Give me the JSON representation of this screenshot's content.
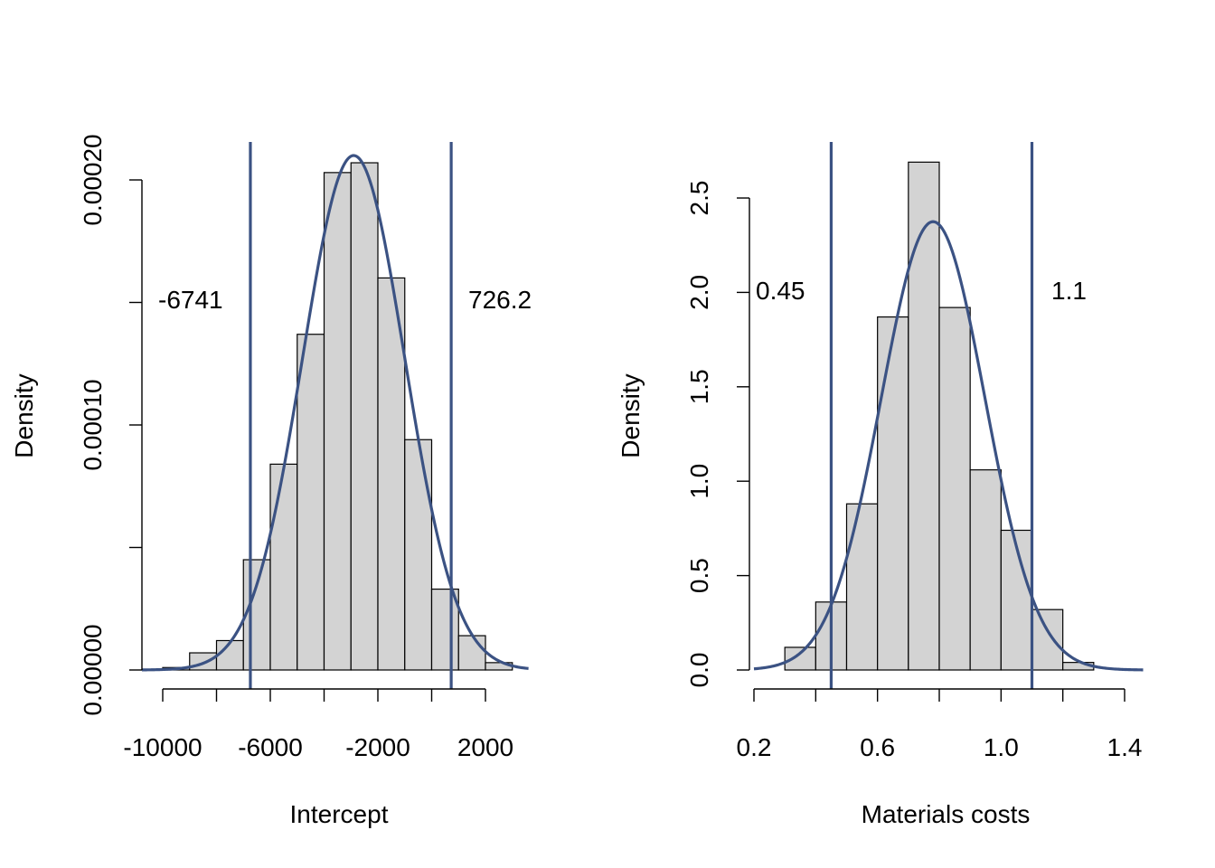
{
  "colors": {
    "bar_fill": "#d3d3d3",
    "bar_stroke": "#000000",
    "line": "#3b5283"
  },
  "chart_data": [
    {
      "type": "bar",
      "subtype": "histogram-with-density",
      "xlabel": "Intercept",
      "ylabel": "Density",
      "xlim": [
        -11000,
        3600
      ],
      "ylim": [
        0,
        0.0002
      ],
      "x_ticks": [
        -10000,
        -8000,
        -6000,
        -4000,
        -2000,
        0,
        2000
      ],
      "x_tick_labels": [
        "-10000",
        "",
        "-6000",
        "",
        "-2000",
        "",
        "2000"
      ],
      "y_ticks": [
        0,
        5e-05,
        0.0001,
        0.00015,
        0.0002
      ],
      "y_tick_labels": [
        "0.00000",
        "",
        "0.00010",
        "",
        "0.00020"
      ],
      "bins": [
        {
          "x0": -10000,
          "x1": -9000,
          "density": 1e-06
        },
        {
          "x0": -9000,
          "x1": -8000,
          "density": 7e-06
        },
        {
          "x0": -8000,
          "x1": -7000,
          "density": 1.2e-05
        },
        {
          "x0": -7000,
          "x1": -6000,
          "density": 4.5e-05
        },
        {
          "x0": -6000,
          "x1": -5000,
          "density": 8.4e-05
        },
        {
          "x0": -5000,
          "x1": -4000,
          "density": 0.000137
        },
        {
          "x0": -4000,
          "x1": -3000,
          "density": 0.000203
        },
        {
          "x0": -3000,
          "x1": -2000,
          "density": 0.000207
        },
        {
          "x0": -2000,
          "x1": -1000,
          "density": 0.00016
        },
        {
          "x0": -1000,
          "x1": 0,
          "density": 9.4e-05
        },
        {
          "x0": 0,
          "x1": 1000,
          "density": 3.3e-05
        },
        {
          "x0": 1000,
          "x1": 2000,
          "density": 1.4e-05
        },
        {
          "x0": 2000,
          "x1": 3000,
          "density": 3e-06
        }
      ],
      "density_curve": {
        "mean": -2900,
        "sd": 1900
      },
      "interval_lines": [
        -6741,
        726.2
      ],
      "interval_labels": [
        "-6741",
        "726.2"
      ]
    },
    {
      "type": "bar",
      "subtype": "histogram-with-density",
      "xlabel": "Materials costs",
      "ylabel": "Density",
      "xlim": [
        0.2,
        1.46
      ],
      "ylim": [
        0,
        2.5
      ],
      "x_ticks": [
        0.2,
        0.4,
        0.6,
        0.8,
        1.0,
        1.2,
        1.4
      ],
      "x_tick_labels": [
        "0.2",
        "",
        "0.6",
        "",
        "1.0",
        "",
        "1.4"
      ],
      "y_ticks": [
        0,
        0.5,
        1.0,
        1.5,
        2.0,
        2.5
      ],
      "y_tick_labels": [
        "0.0",
        "0.5",
        "1.0",
        "1.5",
        "2.0",
        "2.5"
      ],
      "bins": [
        {
          "x0": 0.3,
          "x1": 0.4,
          "density": 0.12
        },
        {
          "x0": 0.4,
          "x1": 0.5,
          "density": 0.36
        },
        {
          "x0": 0.5,
          "x1": 0.6,
          "density": 0.88
        },
        {
          "x0": 0.6,
          "x1": 0.7,
          "density": 1.87
        },
        {
          "x0": 0.7,
          "x1": 0.8,
          "density": 2.69
        },
        {
          "x0": 0.8,
          "x1": 0.9,
          "density": 1.92
        },
        {
          "x0": 0.9,
          "x1": 1.0,
          "density": 1.06
        },
        {
          "x0": 1.0,
          "x1": 1.1,
          "density": 0.74
        },
        {
          "x0": 1.1,
          "x1": 1.2,
          "density": 0.32
        },
        {
          "x0": 1.2,
          "x1": 1.3,
          "density": 0.04
        }
      ],
      "density_curve": {
        "mean": 0.78,
        "sd": 0.168
      },
      "interval_lines": [
        0.45,
        1.1
      ],
      "interval_labels": [
        "0.45",
        "1.1"
      ]
    }
  ]
}
